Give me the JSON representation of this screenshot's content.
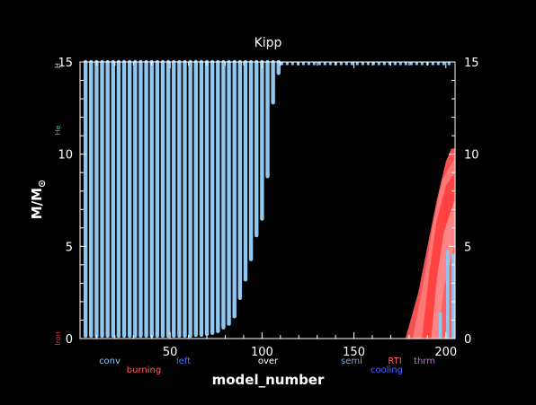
{
  "chart_data": {
    "type": "area",
    "title": "Kipp",
    "xlabel": "model_number",
    "ylabel": "M/M",
    "ylabel_symbol": "⊙",
    "xlim": [
      1,
      205
    ],
    "ylim": [
      0,
      15
    ],
    "xticks": [
      50,
      100,
      150,
      200
    ],
    "yticks": [
      0,
      5,
      10,
      15
    ],
    "right_yticks": [
      0,
      5,
      10,
      15
    ],
    "grid": false,
    "side_labels": [
      {
        "text": "H",
        "color": "#cccccc",
        "y": 14.8
      },
      {
        "text": "He",
        "color": "#2fb6b0",
        "y": 11.3
      },
      {
        "text": "Iron",
        "color": "#ff3030",
        "y": 0.0
      }
    ],
    "legend": [
      {
        "text": "conv",
        "color": "#8ec8f0"
      },
      {
        "text": "burning",
        "color": "#ff6060"
      },
      {
        "text": "left",
        "color": "#3a7bff"
      },
      {
        "text": "over",
        "color": "#ffffff"
      },
      {
        "text": "semi",
        "color": "#8aa6c4"
      },
      {
        "text": "cooling",
        "color": "#4a6aff"
      },
      {
        "text": "RTI",
        "color": "#ff6a6a"
      },
      {
        "text": "thrm",
        "color": "#b07acc"
      }
    ],
    "convection": {
      "color": "#8ec8f0",
      "top": 15,
      "models": [
        4,
        7,
        10,
        13,
        16,
        19,
        22,
        25,
        28,
        31,
        34,
        37,
        40,
        43,
        46,
        49,
        52,
        55,
        58,
        61,
        64,
        67,
        70,
        73,
        76,
        79,
        82,
        85,
        88,
        91,
        94,
        97,
        100,
        103,
        106,
        109
      ],
      "bottoms": [
        0.15,
        0.15,
        0.15,
        0.15,
        0.15,
        0.15,
        0.15,
        0.15,
        0.15,
        0.15,
        0.15,
        0.15,
        0.15,
        0.15,
        0.15,
        0.15,
        0.15,
        0.15,
        0.15,
        0.15,
        0.2,
        0.2,
        0.25,
        0.3,
        0.4,
        0.6,
        0.8,
        1.2,
        2.2,
        3.2,
        4.3,
        5.6,
        6.5,
        8.8,
        12.8,
        14.4
      ],
      "late": [
        {
          "model": 197,
          "bottom": 0,
          "top": 1.4
        },
        {
          "model": 201,
          "bottom": 0,
          "top": 4.8
        },
        {
          "model": 204,
          "bottom": 0,
          "top": 4.6
        }
      ]
    },
    "burning_regions": [
      {
        "color": "#ff5656",
        "outer": [
          [
            178,
            0
          ],
          [
            185,
            2.5
          ],
          [
            190,
            5.0
          ],
          [
            195,
            7.5
          ],
          [
            200,
            9.6
          ],
          [
            203,
            10.3
          ],
          [
            205,
            10.3
          ],
          [
            205,
            0
          ]
        ]
      },
      {
        "color": "#ff7a7a",
        "outer": [
          [
            182,
            0
          ],
          [
            188,
            3.2
          ],
          [
            193,
            6.2
          ],
          [
            198,
            8.6
          ],
          [
            205,
            9.8
          ],
          [
            205,
            0
          ]
        ]
      },
      {
        "color": "#ff4040",
        "outer": [
          [
            187,
            0
          ],
          [
            191,
            3.6
          ],
          [
            195,
            6.4
          ],
          [
            200,
            8.3
          ],
          [
            205,
            9.0
          ],
          [
            205,
            0
          ]
        ]
      },
      {
        "color": "#ff8a8a",
        "outer": [
          [
            192,
            0
          ],
          [
            195,
            3.2
          ],
          [
            199,
            5.8
          ],
          [
            205,
            7.6
          ],
          [
            205,
            0
          ]
        ]
      },
      {
        "color": "#ff5c5c",
        "outer": [
          [
            196,
            0
          ],
          [
            199,
            2.8
          ],
          [
            205,
            5.2
          ],
          [
            205,
            0
          ]
        ]
      }
    ]
  }
}
